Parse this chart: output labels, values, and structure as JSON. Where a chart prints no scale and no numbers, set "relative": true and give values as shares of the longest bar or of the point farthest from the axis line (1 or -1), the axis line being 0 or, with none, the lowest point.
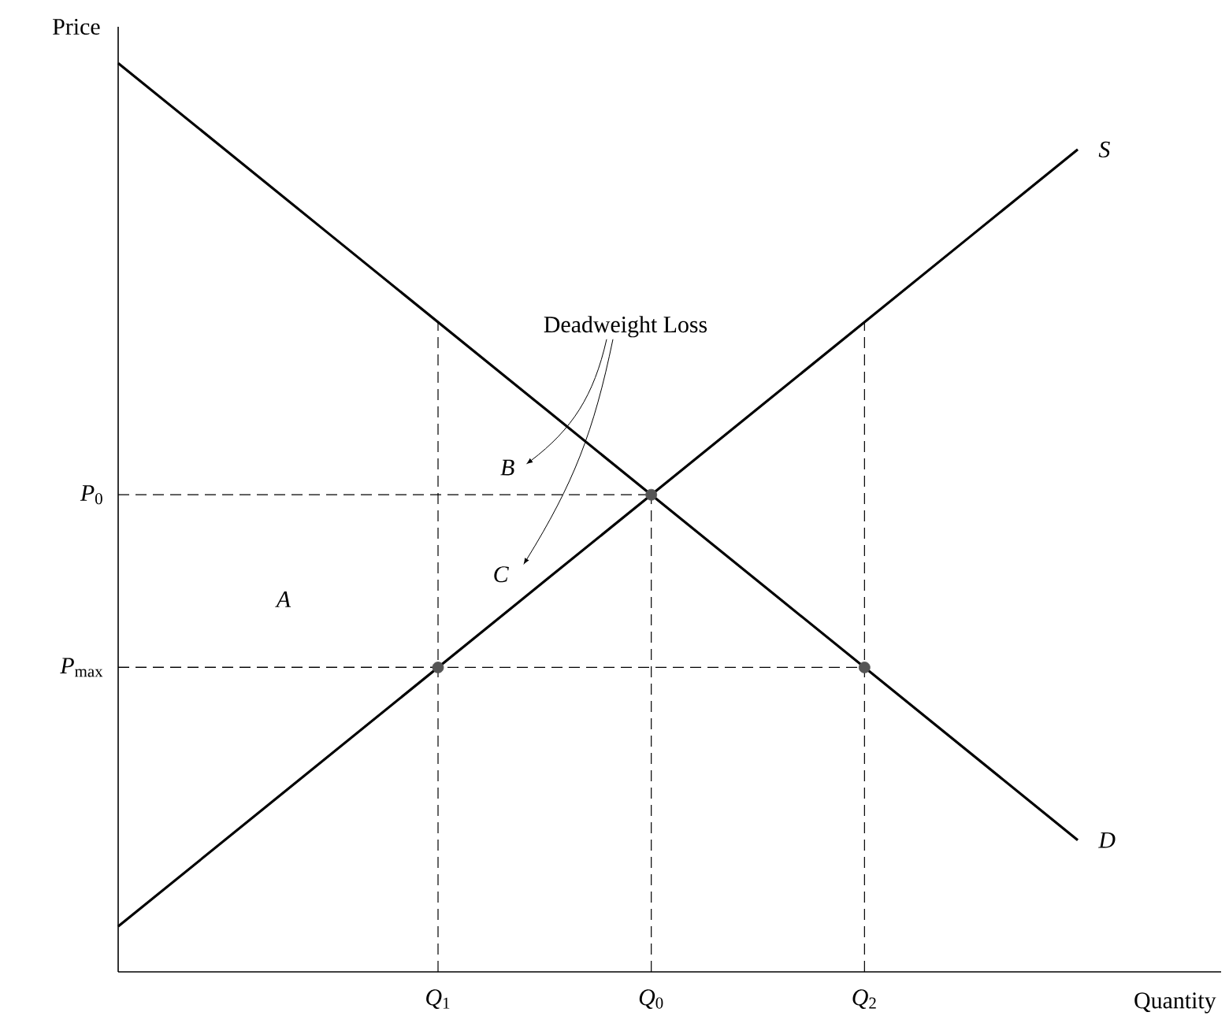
{
  "chart_data": {
    "type": "line",
    "relative": true,
    "xlabel": "Quantity",
    "ylabel": "Price",
    "categories": [
      null,
      null,
      null,
      "*Q*$_{1}$",
      null,
      "*Q*$_{0}$",
      null,
      "*Q*$_{2}$",
      null,
      null
    ],
    "series": [
      {
        "name": "*S*",
        "color": "#000000",
        "values": [
          0.05,
          0.145,
          0.24,
          0.335,
          0.43,
          0.525,
          0.62,
          0.715,
          0.81,
          0.905
        ]
      },
      {
        "name": "*D*",
        "color": "#000000",
        "values": [
          1,
          0.905,
          0.81,
          0.715,
          0.62,
          0.525,
          0.43,
          0.335,
          0.24,
          0.145
        ]
      },
      {
        "type": "scatter",
        "marker": "circle",
        "color": "#555555",
        "values": [
          null,
          null,
          null,
          0.335,
          null,
          0.525,
          null,
          0.335,
          null,
          null
        ]
      }
    ],
    "annotations": [
      "Deadweight Loss",
      "*A*",
      "*B*",
      "*C*",
      "*P*$_{0}$",
      "*P*$_{max}$"
    ]
  }
}
